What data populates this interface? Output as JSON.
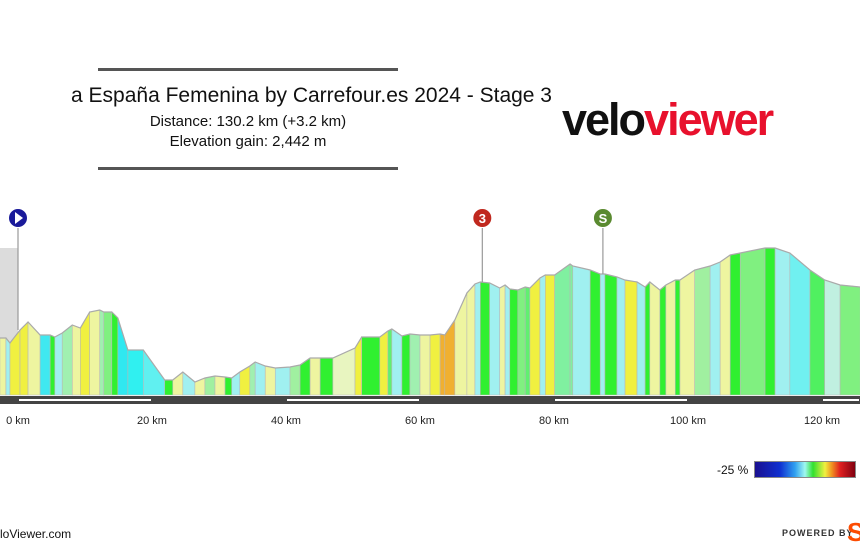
{
  "header": {
    "title": "a España Femenina by Carrefour.es 2024 - Stage 3",
    "distance": "Distance: 130.2 km (+3.2 km)",
    "elevation_gain": "Elevation gain: 2,442 m"
  },
  "logo": {
    "part1": "velo",
    "part2": "viewer",
    "color": "#e8112d"
  },
  "footer": {
    "site": "loViewer.com",
    "powered_by": "POWERED BY",
    "strava_mark": "S"
  },
  "legend": {
    "label": "-25 %"
  },
  "chart_data": {
    "type": "area",
    "xlabel": "",
    "ylabel": "",
    "x_unit": "km",
    "xlim": [
      -2.7,
      125.7
    ],
    "x_ticks": [
      "0 km",
      "20 km",
      "40 km",
      "60 km",
      "80 km",
      "100 km",
      "120 km"
    ],
    "x_tick_values": [
      0,
      20,
      40,
      60,
      80,
      100,
      120
    ],
    "markers": [
      {
        "km": 0,
        "label": "",
        "type": "start",
        "color": "#1a1a9a"
      },
      {
        "km": 69.3,
        "label": "3",
        "type": "climb",
        "color": "#c0281e"
      },
      {
        "km": 87.3,
        "label": "S",
        "type": "sprint",
        "color": "#5a8a30"
      }
    ],
    "profile": [
      [
        -2.7,
        285,
        "#eef5a0"
      ],
      [
        -1.8,
        285,
        "#a0f0f0"
      ],
      [
        -1.2,
        260,
        "#f0f040"
      ],
      [
        0.3,
        325,
        "#f0f040"
      ],
      [
        1.5,
        365,
        "#eef5a0"
      ],
      [
        3.3,
        300,
        "#40e8f0"
      ],
      [
        4.8,
        300,
        "#30f030"
      ],
      [
        5.5,
        290,
        "#a0f0f0"
      ],
      [
        6.6,
        310,
        "#a0f0b0"
      ],
      [
        8.1,
        350,
        "#eef5a0"
      ],
      [
        9.3,
        335,
        "#f0f040"
      ],
      [
        10.7,
        415,
        "#eef5a0"
      ],
      [
        12.2,
        425,
        "#a0f0b0"
      ],
      [
        12.8,
        415,
        "#80f080"
      ],
      [
        14.0,
        415,
        "#30f030"
      ],
      [
        14.9,
        385,
        "#30e8f0"
      ],
      [
        16.4,
        225,
        "#30f0f0"
      ],
      [
        18.7,
        225,
        "#60f0f0"
      ],
      [
        21.9,
        75,
        "#30f030"
      ],
      [
        23.1,
        75,
        "#eef5a0"
      ],
      [
        24.6,
        115,
        "#a0f0f0"
      ],
      [
        26.4,
        65,
        "#eef5a0"
      ],
      [
        27.9,
        85,
        "#a0f0a0"
      ],
      [
        29.4,
        95,
        "#eef5a0"
      ],
      [
        30.9,
        90,
        "#30f030"
      ],
      [
        31.9,
        85,
        "#a0f0f0"
      ],
      [
        33.1,
        115,
        "#f0f040"
      ],
      [
        34.6,
        145,
        "#a0f0b0"
      ],
      [
        35.4,
        165,
        "#a0f0f0"
      ],
      [
        36.9,
        145,
        "#eef5a0"
      ],
      [
        38.4,
        135,
        "#a0f0f0"
      ],
      [
        40.6,
        140,
        "#a0f0a0"
      ],
      [
        42.1,
        150,
        "#30f030"
      ],
      [
        43.6,
        185,
        "#eef5a0"
      ],
      [
        45.1,
        185,
        "#30f030"
      ],
      [
        47.0,
        185,
        "#e8f5c0"
      ],
      [
        50.3,
        235,
        "#f0f040"
      ],
      [
        51.3,
        290,
        "#30f030"
      ],
      [
        54.0,
        290,
        "#f0f040"
      ],
      [
        55.2,
        320,
        "#60f070"
      ],
      [
        55.8,
        330,
        "#a0f0f0"
      ],
      [
        57.3,
        295,
        "#30f030"
      ],
      [
        58.5,
        305,
        "#a0f0b0"
      ],
      [
        60.0,
        300,
        "#eef5a0"
      ],
      [
        61.5,
        300,
        "#f0f040"
      ],
      [
        63.0,
        305,
        "#f0b030"
      ],
      [
        63.7,
        300,
        "#f0b030"
      ],
      [
        65.2,
        375,
        "#eef5a0"
      ],
      [
        67.0,
        510,
        "#eef5a0"
      ],
      [
        68.2,
        555,
        "#a0f0f0"
      ],
      [
        69.0,
        565,
        "#30f030"
      ],
      [
        70.4,
        560,
        "#a0f0f0"
      ],
      [
        71.9,
        535,
        "#eef5a0"
      ],
      [
        72.7,
        550,
        "#a0f0f0"
      ],
      [
        73.4,
        530,
        "#30f030"
      ],
      [
        74.6,
        525,
        "#80f080"
      ],
      [
        75.7,
        540,
        "#60f070"
      ],
      [
        76.4,
        535,
        "#f0f040"
      ],
      [
        77.9,
        585,
        "#a0f0f0"
      ],
      [
        78.7,
        600,
        "#f0f040"
      ],
      [
        80.1,
        600,
        "#80f0a0"
      ],
      [
        82.4,
        655,
        "#80f0a0"
      ],
      [
        82.8,
        645,
        "#a0f0f0"
      ],
      [
        85.4,
        625,
        "#30f030"
      ],
      [
        86.9,
        605,
        "#a0f0f0"
      ],
      [
        87.6,
        605,
        "#30f030"
      ],
      [
        89.4,
        590,
        "#a0f0f0"
      ],
      [
        90.6,
        575,
        "#f0f040"
      ],
      [
        92.4,
        565,
        "#a0f0f0"
      ],
      [
        93.6,
        540,
        "#30f030"
      ],
      [
        94.3,
        565,
        "#eef5a0"
      ],
      [
        95.8,
        525,
        "#30f030"
      ],
      [
        96.7,
        550,
        "#eef5a0"
      ],
      [
        98.1,
        575,
        "#30f030"
      ],
      [
        98.8,
        575,
        "#eef5a0"
      ],
      [
        101.0,
        625,
        "#a0f0a0"
      ],
      [
        103.3,
        645,
        "#a0f0f0"
      ],
      [
        104.8,
        665,
        "#eef5a0"
      ],
      [
        106.3,
        700,
        "#30f030"
      ],
      [
        107.8,
        710,
        "#80f080"
      ],
      [
        111.5,
        735,
        "#30f030"
      ],
      [
        113.0,
        735,
        "#a0f0f0"
      ],
      [
        115.2,
        710,
        "#70f0f0"
      ],
      [
        118.2,
        625,
        "#50f060"
      ],
      [
        120.4,
        575,
        "#c0f0e0"
      ],
      [
        122.7,
        550,
        "#80f080"
      ],
      [
        125.7,
        540,
        "#80f080"
      ]
    ]
  }
}
